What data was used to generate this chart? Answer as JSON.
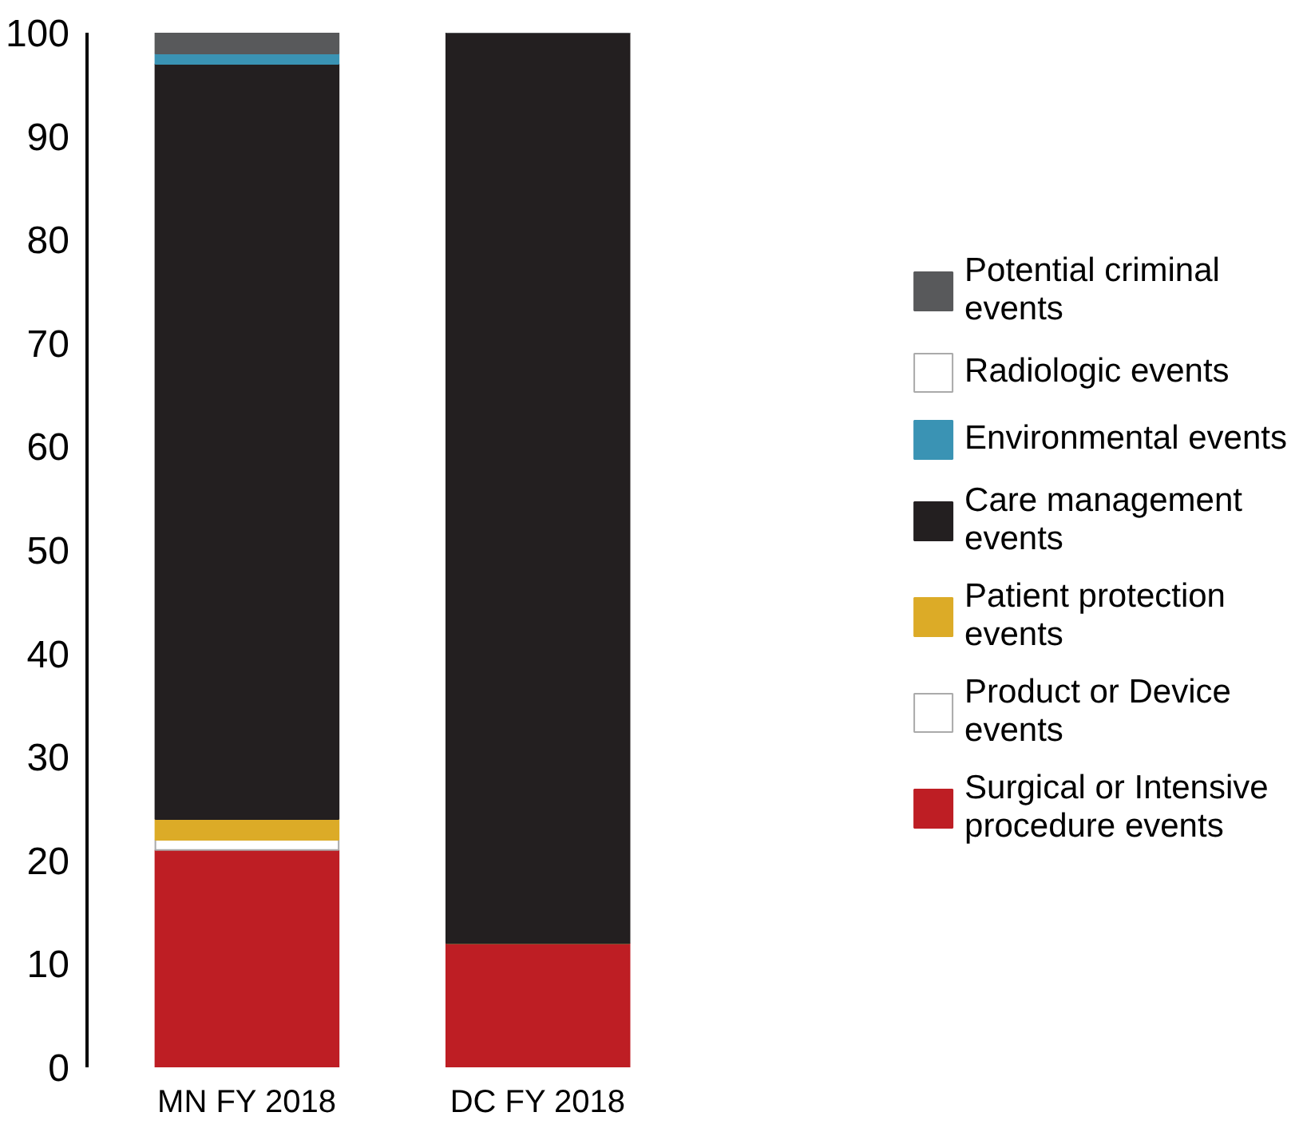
{
  "chart_data": {
    "type": "bar",
    "stacked": true,
    "categories": [
      "MN FY 2018",
      "DC FY 2018"
    ],
    "series": [
      {
        "name": "Surgical or Intensive procedure events",
        "color": "#be1e24",
        "values": [
          21,
          12
        ]
      },
      {
        "name": "Product or Device events",
        "color": "#ffffff",
        "values": [
          1,
          0
        ]
      },
      {
        "name": "Patient protection events",
        "color": "#dcab27",
        "values": [
          2,
          0
        ]
      },
      {
        "name": "Care management events",
        "color": "#231f20",
        "values": [
          73,
          88
        ]
      },
      {
        "name": "Environmental events",
        "color": "#3a93b4",
        "values": [
          1,
          0
        ]
      },
      {
        "name": "Radiologic events",
        "color": "#ffffff",
        "values": [
          0,
          0
        ]
      },
      {
        "name": "Potential criminal events",
        "color": "#58595b",
        "values": [
          2,
          0
        ]
      }
    ],
    "ylim": [
      0,
      100
    ],
    "yticks": [
      0,
      10,
      20,
      30,
      40,
      50,
      60,
      70,
      80,
      90,
      100
    ],
    "grid": false,
    "legend": "right"
  }
}
